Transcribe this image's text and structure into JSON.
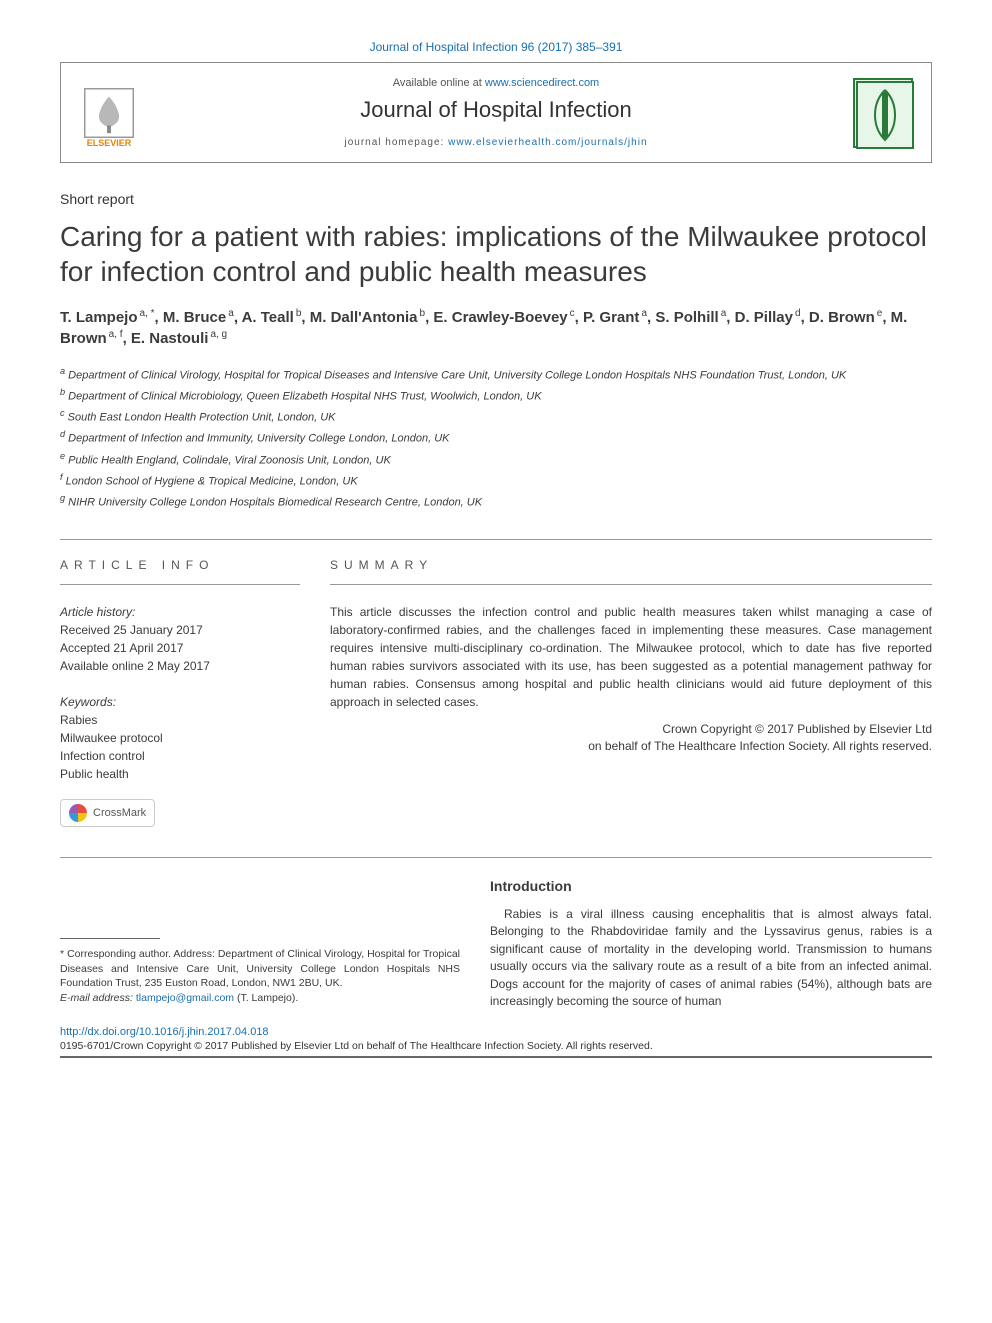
{
  "header": {
    "citation": "Journal of Hospital Infection 96 (2017) 385–391",
    "available_prefix": "Available online at ",
    "available_url": "www.sciencedirect.com",
    "journal_name": "Journal of Hospital Infection",
    "homepage_prefix": "journal homepage: ",
    "homepage_url": "www.elsevierhealth.com/journals/jhin",
    "elsevier_label": "ELSEVIER"
  },
  "article": {
    "type": "Short report",
    "title": "Caring for a patient with rabies: implications of the Milwaukee protocol for infection control and public health measures"
  },
  "authors": [
    {
      "name": "T. Lampejo",
      "affil": "a, *"
    },
    {
      "name": "M. Bruce",
      "affil": "a"
    },
    {
      "name": "A. Teall",
      "affil": "b"
    },
    {
      "name": "M. Dall'Antonia",
      "affil": "b"
    },
    {
      "name": "E. Crawley-Boevey",
      "affil": "c"
    },
    {
      "name": "P. Grant",
      "affil": "a"
    },
    {
      "name": "S. Polhill",
      "affil": "a"
    },
    {
      "name": "D. Pillay",
      "affil": "d"
    },
    {
      "name": "D. Brown",
      "affil": "e"
    },
    {
      "name": "M. Brown",
      "affil": "a, f"
    },
    {
      "name": "E. Nastouli",
      "affil": "a, g"
    }
  ],
  "affiliations": [
    {
      "key": "a",
      "text": "Department of Clinical Virology, Hospital for Tropical Diseases and Intensive Care Unit, University College London Hospitals NHS Foundation Trust, London, UK"
    },
    {
      "key": "b",
      "text": "Department of Clinical Microbiology, Queen Elizabeth Hospital NHS Trust, Woolwich, London, UK"
    },
    {
      "key": "c",
      "text": "South East London Health Protection Unit, London, UK"
    },
    {
      "key": "d",
      "text": "Department of Infection and Immunity, University College London, London, UK"
    },
    {
      "key": "e",
      "text": "Public Health England, Colindale, Viral Zoonosis Unit, London, UK"
    },
    {
      "key": "f",
      "text": "London School of Hygiene & Tropical Medicine, London, UK"
    },
    {
      "key": "g",
      "text": "NIHR University College London Hospitals Biomedical Research Centre, London, UK"
    }
  ],
  "info": {
    "heading": "ARTICLE INFO",
    "history_label": "Article history:",
    "received": "Received 25 January 2017",
    "accepted": "Accepted 21 April 2017",
    "online": "Available online 2 May 2017",
    "keywords_label": "Keywords:",
    "keywords": [
      "Rabies",
      "Milwaukee protocol",
      "Infection control",
      "Public health"
    ],
    "crossmark": "CrossMark"
  },
  "summary": {
    "heading": "SUMMARY",
    "text": "This article discusses the infection control and public health measures taken whilst managing a case of laboratory-confirmed rabies, and the challenges faced in implementing these measures. Case management requires intensive multi-disciplinary co-ordination. The Milwaukee protocol, which to date has five reported human rabies survivors associated with its use, has been suggested as a potential management pathway for human rabies. Consensus among hospital and public health clinicians would aid future deployment of this approach in selected cases.",
    "copyright1": "Crown Copyright © 2017 Published by Elsevier Ltd",
    "copyright2": "on behalf of The Healthcare Infection Society. All rights reserved."
  },
  "footnote": {
    "corr_label": "* Corresponding author. Address: Department of Clinical Virology, Hospital for Tropical Diseases and Intensive Care Unit, University College London Hospitals NHS Foundation Trust, 235 Euston Road, London, NW1 2BU, UK.",
    "email_label": "E-mail address: ",
    "email": "tlampejo@gmail.com",
    "email_author": " (T. Lampejo)."
  },
  "intro": {
    "heading": "Introduction",
    "text": "Rabies is a viral illness causing encephalitis that is almost always fatal. Belonging to the Rhabdoviridae family and the Lyssavirus genus, rabies is a significant cause of mortality in the developing world. Transmission to humans usually occurs via the salivary route as a result of a bite from an infected animal. Dogs account for the majority of cases of animal rabies (54%), although bats are increasingly becoming the source of human"
  },
  "footer": {
    "doi": "http://dx.doi.org/10.1016/j.jhin.2017.04.018",
    "copyright": "0195-6701/Crown Copyright © 2017 Published by Elsevier Ltd on behalf of The Healthcare Infection Society. All rights reserved."
  },
  "colors": {
    "link": "#1a6fae",
    "text": "#3b3b3b",
    "elsevier": "#e98300"
  }
}
